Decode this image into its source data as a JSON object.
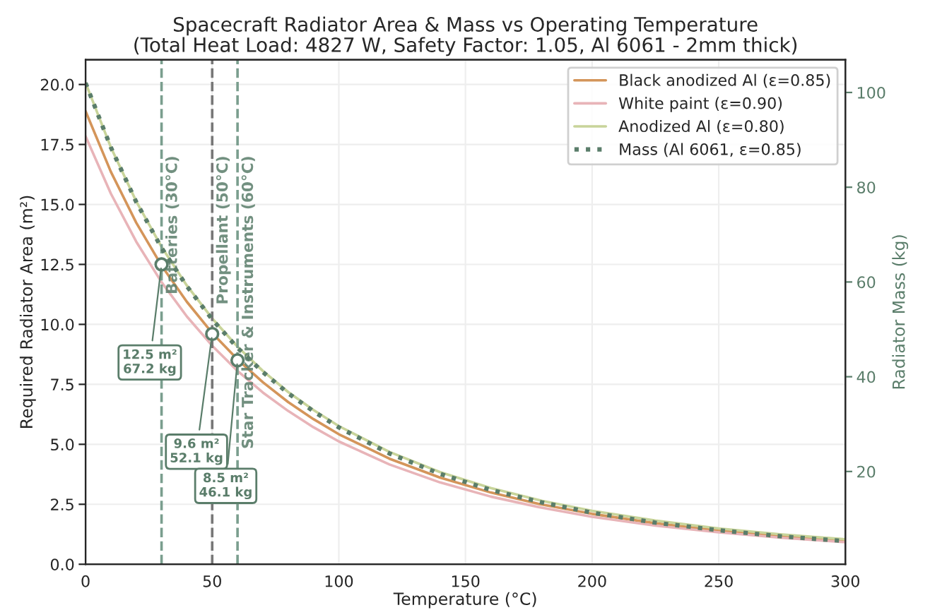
{
  "chart_data": {
    "type": "line",
    "title": "Spacecraft Radiator Area & Mass vs Operating Temperature\n(Total Heat Load: 4827 W, Safety Factor: 1.05, Al 6061 - 2mm thick)",
    "xlabel": "Temperature (°C)",
    "ylabel": "Required Radiator Area (m²)",
    "y2label": "Radiator Mass (kg)",
    "x": [
      0,
      10,
      20,
      30,
      40,
      50,
      60,
      70,
      80,
      90,
      100,
      120,
      140,
      160,
      180,
      200,
      225,
      250,
      275,
      300
    ],
    "series": [
      {
        "name": "Black anodized Al (ε=0.85)",
        "color": "#d4955a",
        "line_style": "solid",
        "values": [
          18.89,
          16.36,
          14.24,
          12.45,
          10.94,
          9.64,
          8.54,
          7.59,
          6.76,
          6.05,
          5.42,
          4.4,
          3.61,
          2.99,
          2.49,
          2.1,
          1.71,
          1.4,
          1.17,
          0.98
        ]
      },
      {
        "name": "White paint (ε=0.90)",
        "color": "#e8b4b8",
        "line_style": "solid",
        "values": [
          17.84,
          15.45,
          13.45,
          11.76,
          10.33,
          9.11,
          8.06,
          7.16,
          6.39,
          5.71,
          5.12,
          4.16,
          3.41,
          2.82,
          2.36,
          1.98,
          1.61,
          1.33,
          1.1,
          0.92
        ]
      },
      {
        "name": "Anodized Al (ε=0.80)",
        "color": "#c8d49a",
        "line_style": "solid",
        "values": [
          20.07,
          17.38,
          15.13,
          13.23,
          11.62,
          10.25,
          9.07,
          8.06,
          7.18,
          6.43,
          5.76,
          4.68,
          3.84,
          3.18,
          2.65,
          2.23,
          1.82,
          1.49,
          1.24,
          1.04
        ]
      },
      {
        "name": "Mass (Al 6061, ε=0.85)",
        "color": "#5a7d6a",
        "line_style": "dotted",
        "axis": "y2",
        "values": [
          102.0,
          88.4,
          76.9,
          67.2,
          59.1,
          52.1,
          46.1,
          41.0,
          36.5,
          32.7,
          29.3,
          23.8,
          19.5,
          16.1,
          13.5,
          11.3,
          9.2,
          7.6,
          6.3,
          5.3
        ]
      }
    ],
    "xlim": [
      0,
      300
    ],
    "xticks": [
      0,
      50,
      100,
      150,
      200,
      250,
      300
    ],
    "ylim": [
      0,
      21.03
    ],
    "yticks": [
      {
        "value": 0,
        "label": "0.0"
      },
      {
        "value": 2.5,
        "label": "2.5"
      },
      {
        "value": 5,
        "label": "5.0"
      },
      {
        "value": 7.5,
        "label": "7.5"
      },
      {
        "value": 10,
        "label": "10.0"
      },
      {
        "value": 12.5,
        "label": "12.5"
      },
      {
        "value": 15,
        "label": "15.0"
      },
      {
        "value": 17.5,
        "label": "17.5"
      },
      {
        "value": 20,
        "label": "20.0"
      }
    ],
    "y2lim": [
      0.42,
      106.9
    ],
    "y2ticks": [
      20,
      40,
      60,
      80,
      100
    ],
    "ref_lines": [
      {
        "axis": "x",
        "value": 30,
        "label": "Batteries (30°C)",
        "color": "#7a9e8e",
        "line_style": "dashed"
      },
      {
        "axis": "x",
        "value": 50,
        "label": "Propellant (50°C)",
        "color": "#777777",
        "line_style": "dashed"
      },
      {
        "axis": "x",
        "value": 60,
        "label": "Star Tracker & Instruments (60°C)",
        "color": "#7a9e8e",
        "line_style": "dashed"
      }
    ],
    "annotations": [
      {
        "text": "12.5 m²\n67.2 kg",
        "x": 30,
        "y": 12.5
      },
      {
        "text": "9.6 m²\n52.1 kg",
        "x": 50,
        "y": 9.6
      },
      {
        "text": "8.5 m²\n46.1 kg",
        "x": 60,
        "y": 8.5
      }
    ],
    "grid": true,
    "legend": "top right"
  }
}
